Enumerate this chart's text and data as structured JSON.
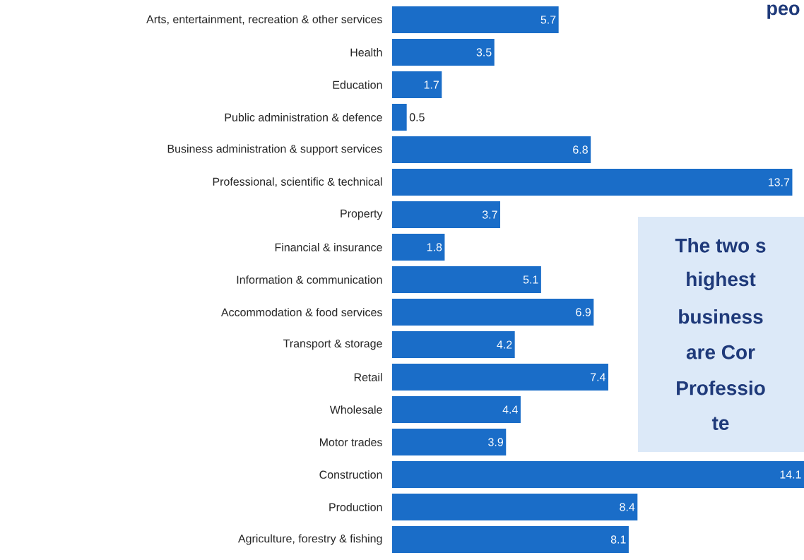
{
  "chart_data": {
    "type": "bar",
    "orientation": "horizontal",
    "title": "peo",
    "categories": [
      "Arts, entertainment, recreation & other services",
      "Health",
      "Education",
      "Public administration & defence",
      "Business administration & support services",
      "Professional, scientific & technical",
      "Property",
      "Financial & insurance",
      "Information & communication",
      "Accommodation & food services",
      "Transport & storage",
      "Retail",
      "Wholesale",
      "Motor trades",
      "Construction",
      "Production",
      "Agriculture, forestry & fishing"
    ],
    "values": [
      5.7,
      3.5,
      1.7,
      0.5,
      6.8,
      13.7,
      3.7,
      1.8,
      5.1,
      6.9,
      4.2,
      7.4,
      4.4,
      3.9,
      14.1,
      8.4,
      8.1
    ],
    "color": "#1a6dc8",
    "data_labels": true,
    "annotations": [
      "The two s",
      "highest",
      "business",
      "are Cor",
      "Professio",
      "te"
    ]
  }
}
